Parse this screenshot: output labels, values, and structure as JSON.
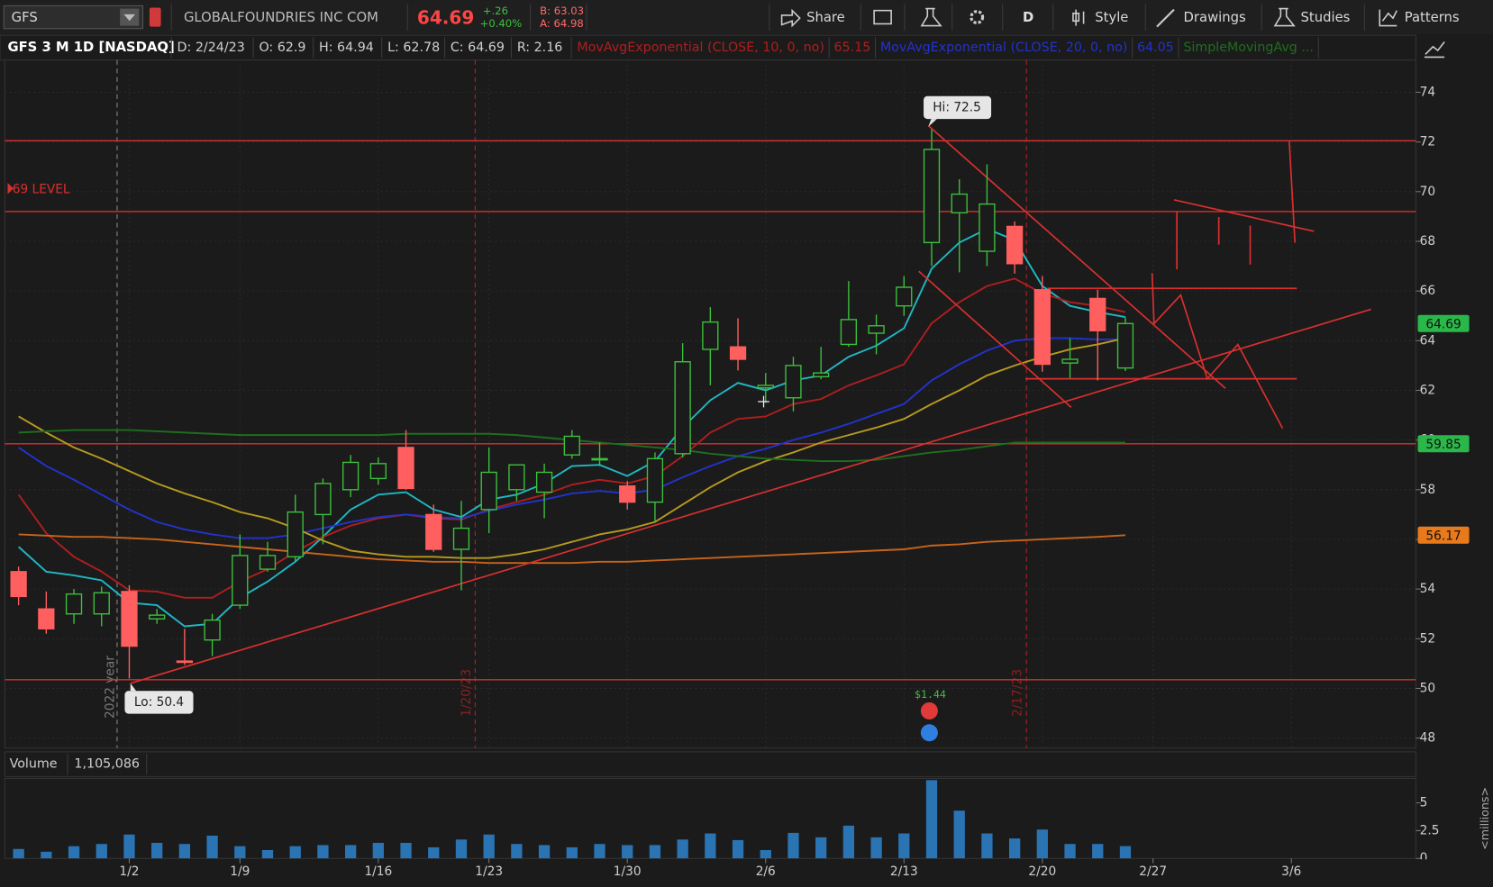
{
  "toolbar": {
    "symbol": "GFS",
    "company": "GLOBALFOUNDRIES INC COM",
    "last": "64.69",
    "change": "+.26",
    "change_pct": "+0.40%",
    "bid": "B: 63.03",
    "ask": "A: 64.98",
    "buttons": [
      "Share",
      "D",
      "Style",
      "Drawings",
      "Studies",
      "Patterns"
    ]
  },
  "chart_header": {
    "title": "GFS 3 M 1D [NASDAQ]",
    "fields": [
      "D: 2/24/23",
      "O: 62.9",
      "H: 64.94",
      "L: 62.78",
      "C: 64.69",
      "R: 2.16"
    ]
  },
  "chart_data": {
    "type": "candlestick",
    "categories": [
      null,
      null,
      null,
      null,
      "1/2",
      null,
      null,
      null,
      "1/9",
      null,
      null,
      null,
      null,
      "1/16",
      null,
      null,
      null,
      "1/23",
      null,
      null,
      null,
      null,
      "1/30",
      null,
      null,
      null,
      null,
      "2/6",
      null,
      null,
      null,
      null,
      "2/13",
      null,
      null,
      null,
      null,
      "2/20",
      null,
      null,
      null,
      "2/27",
      null,
      null,
      null,
      null,
      "3/6",
      null,
      null,
      null,
      null
    ],
    "open": [
      54.7,
      53.2,
      53.0,
      53.0,
      53.9,
      52.8,
      51.1,
      51.95,
      53.35,
      54.8,
      55.3,
      57.0,
      58.0,
      58.45,
      59.7,
      57.0,
      55.6,
      57.2,
      58.0,
      57.9,
      59.4,
      59.2,
      58.15,
      57.5,
      59.45,
      63.65,
      63.75,
      62.1,
      61.7,
      62.55,
      63.85,
      64.3,
      65.4,
      67.95,
      69.15,
      67.6,
      68.6,
      66.05,
      63.1,
      65.7,
      62.9,
      null,
      null,
      null,
      null,
      null,
      null,
      null,
      null,
      null,
      null
    ],
    "high": [
      54.9,
      53.9,
      54.0,
      54.1,
      54.15,
      53.2,
      52.4,
      53.0,
      56.2,
      55.9,
      57.8,
      58.45,
      59.4,
      59.3,
      60.4,
      57.4,
      57.55,
      59.7,
      59.0,
      59.05,
      60.4,
      59.9,
      58.35,
      59.5,
      63.9,
      65.35,
      64.9,
      62.7,
      63.35,
      63.75,
      66.4,
      65.05,
      66.6,
      72.5,
      70.5,
      71.1,
      68.8,
      66.6,
      64.1,
      66.05,
      64.94,
      null,
      null,
      null,
      null,
      null,
      null,
      null,
      null,
      null,
      null
    ],
    "low": [
      53.35,
      52.2,
      52.6,
      52.5,
      50.4,
      52.6,
      50.95,
      51.3,
      53.2,
      54.7,
      55.1,
      55.8,
      57.7,
      58.2,
      58.0,
      55.5,
      53.95,
      56.25,
      57.55,
      56.85,
      59.25,
      58.95,
      57.2,
      56.7,
      59.3,
      62.2,
      62.8,
      61.5,
      61.15,
      62.45,
      63.75,
      63.45,
      65.0,
      67.0,
      66.75,
      67.0,
      66.7,
      62.75,
      62.5,
      62.4,
      62.78,
      null,
      null,
      null,
      null,
      null,
      null,
      null,
      null,
      null,
      null
    ],
    "close": [
      53.7,
      52.4,
      53.8,
      53.85,
      51.7,
      52.95,
      51.05,
      52.75,
      55.35,
      55.35,
      57.1,
      58.25,
      59.1,
      59.05,
      58.05,
      55.6,
      56.45,
      58.7,
      59.0,
      58.7,
      60.15,
      59.25,
      57.5,
      59.25,
      63.15,
      64.75,
      63.25,
      62.2,
      63.0,
      62.7,
      64.85,
      64.6,
      66.15,
      71.7,
      69.9,
      69.5,
      67.1,
      63.05,
      63.25,
      64.4,
      64.69,
      null,
      null,
      null,
      null,
      null,
      null,
      null,
      null,
      null,
      null
    ],
    "up_color": "#3cc13c",
    "down_color": "#ff5f5f",
    "ylim": [
      47.6,
      75.3
    ],
    "yticks": [
      48,
      50,
      52,
      54,
      56,
      58,
      60,
      62,
      64,
      66,
      68,
      70,
      72,
      74
    ],
    "grid": true,
    "series": [
      {
        "color": "#1fb8c4",
        "values": [
          55.7,
          54.7,
          54.55,
          54.35,
          53.45,
          53.35,
          52.5,
          52.6,
          53.65,
          54.3,
          55.1,
          56.1,
          57.2,
          57.8,
          57.9,
          57.2,
          56.9,
          57.6,
          57.8,
          58.25,
          58.95,
          59.0,
          58.55,
          59.15,
          60.5,
          61.6,
          62.3,
          62.0,
          62.4,
          62.6,
          63.35,
          63.8,
          64.5,
          66.9,
          67.95,
          68.5,
          68.05,
          66.2,
          65.4,
          65.15,
          64.95,
          null,
          null,
          null,
          null,
          null,
          null,
          null,
          null,
          null,
          null
        ]
      },
      {
        "name": "MovAvgExponential (CLOSE, 10, 0, no)",
        "current": 65.15,
        "color": "#b01e1e",
        "values": [
          57.8,
          56.25,
          55.3,
          54.7,
          53.95,
          53.9,
          53.65,
          53.65,
          54.3,
          54.8,
          55.5,
          56.1,
          56.55,
          56.85,
          57.0,
          56.85,
          56.8,
          57.2,
          57.5,
          57.8,
          58.2,
          58.4,
          58.25,
          58.55,
          59.35,
          60.3,
          60.85,
          60.95,
          61.45,
          61.65,
          62.2,
          62.6,
          63.05,
          64.7,
          65.55,
          66.2,
          66.5,
          65.9,
          65.55,
          65.4,
          65.15,
          null,
          null,
          null,
          null,
          null,
          null,
          null,
          null,
          null,
          null
        ]
      },
      {
        "name": "MovAvgExponential (CLOSE, 20, 0, no)",
        "current": 64.05,
        "color": "#2233cc",
        "values": [
          59.7,
          58.95,
          58.4,
          57.8,
          57.2,
          56.7,
          56.4,
          56.2,
          56.05,
          56.05,
          56.2,
          56.45,
          56.7,
          56.9,
          57.0,
          56.9,
          56.85,
          57.15,
          57.4,
          57.6,
          57.85,
          57.95,
          57.85,
          58.0,
          58.5,
          58.95,
          59.35,
          59.65,
          60.0,
          60.3,
          60.65,
          61.05,
          61.45,
          62.4,
          63.05,
          63.6,
          64.0,
          64.1,
          64.1,
          64.05,
          64.05,
          null,
          null,
          null,
          null,
          null,
          null,
          null,
          null,
          null,
          null
        ]
      },
      {
        "color": "#b89a1e",
        "values": [
          60.95,
          60.3,
          59.7,
          59.25,
          58.75,
          58.25,
          57.85,
          57.5,
          57.1,
          56.85,
          56.45,
          55.95,
          55.55,
          55.4,
          55.3,
          55.3,
          55.25,
          55.25,
          55.4,
          55.6,
          55.9,
          56.2,
          56.4,
          56.7,
          57.4,
          58.1,
          58.7,
          59.15,
          59.5,
          59.9,
          60.2,
          60.5,
          60.85,
          61.45,
          62.0,
          62.6,
          63.0,
          63.35,
          63.65,
          63.85,
          64.1,
          null,
          null,
          null,
          null,
          null,
          null,
          null,
          null,
          null,
          null
        ]
      },
      {
        "color": "#c8641a",
        "values": [
          56.2,
          56.15,
          56.1,
          56.1,
          56.05,
          56.0,
          55.9,
          55.8,
          55.7,
          55.6,
          55.5,
          55.4,
          55.3,
          55.2,
          55.15,
          55.1,
          55.1,
          55.05,
          55.05,
          55.05,
          55.05,
          55.1,
          55.1,
          55.15,
          55.2,
          55.25,
          55.3,
          55.35,
          55.4,
          55.45,
          55.5,
          55.55,
          55.6,
          55.75,
          55.8,
          55.9,
          55.95,
          56.0,
          56.05,
          56.1,
          56.17,
          null,
          null,
          null,
          null,
          null,
          null,
          null,
          null,
          null,
          null
        ]
      },
      {
        "name": "SimpleMovingAvg ...",
        "color": "#1e6e1e",
        "values": [
          60.3,
          60.35,
          60.4,
          60.4,
          60.4,
          60.35,
          60.3,
          60.25,
          60.2,
          60.2,
          60.2,
          60.2,
          60.2,
          60.2,
          60.25,
          60.25,
          60.25,
          60.25,
          60.2,
          60.1,
          60.0,
          59.9,
          59.8,
          59.7,
          59.6,
          59.45,
          59.35,
          59.25,
          59.2,
          59.15,
          59.15,
          59.2,
          59.35,
          59.5,
          59.6,
          59.75,
          59.9,
          59.9,
          59.9,
          59.9,
          59.9,
          null,
          null,
          null,
          null,
          null,
          null,
          null,
          null,
          null,
          null
        ]
      }
    ],
    "hlines": [
      72.05,
      69.2,
      59.85,
      50.35
    ],
    "hline_color": "#d8302f",
    "price_tags": [
      {
        "value": 64.69,
        "color": "#2bb84a"
      },
      {
        "value": 59.85,
        "color": "#2bb84a"
      },
      {
        "value": 56.17,
        "color": "#e87a1c"
      }
    ],
    "annotations": {
      "level": "69 LEVEL",
      "hi": "Hi: 72.5",
      "lo": "Lo: 50.4",
      "dividend": "$1.44"
    },
    "markers": [
      "2022 year",
      "1/20/23",
      "2/17/23"
    ],
    "volume": {
      "title": "Volume",
      "last_label": "1,105,086",
      "axis_label": "<millions>",
      "color": "#2a74b4",
      "ylim": [
        0,
        7.2
      ],
      "yticks": [
        0,
        2.5,
        5
      ],
      "values": [
        0.85,
        0.6,
        1.1,
        1.3,
        2.15,
        1.4,
        1.3,
        2.05,
        1.1,
        0.75,
        1.1,
        1.2,
        1.2,
        1.4,
        1.4,
        1.0,
        1.7,
        2.15,
        1.3,
        1.2,
        1.0,
        1.3,
        1.2,
        1.2,
        1.7,
        2.25,
        1.65,
        0.75,
        2.3,
        1.9,
        2.95,
        1.9,
        2.25,
        7.05,
        4.3,
        2.25,
        1.8,
        2.6,
        1.3,
        1.3,
        1.105086,
        null,
        null,
        null,
        null,
        null,
        null,
        null,
        null,
        null,
        null
      ]
    }
  }
}
